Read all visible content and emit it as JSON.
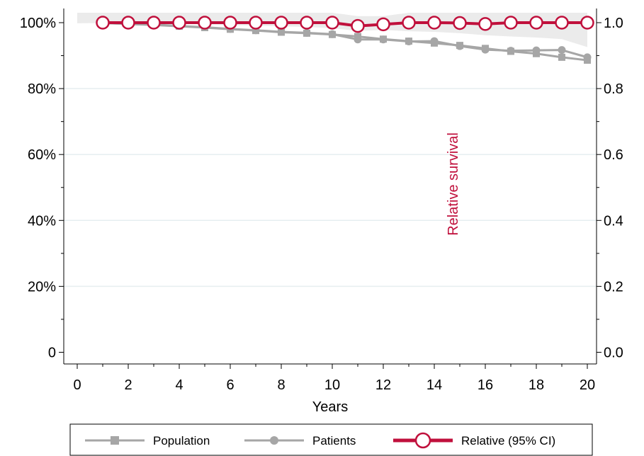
{
  "chart_data": {
    "type": "line",
    "title": "",
    "xlabel": "Years",
    "ylabel_left": "",
    "ylabel_right": "Relative survival",
    "xlim": [
      0,
      20
    ],
    "ylim_left": [
      0,
      100
    ],
    "ylim_right": [
      0.0,
      1.0
    ],
    "x_ticks": [
      "0",
      "2",
      "4",
      "6",
      "8",
      "10",
      "12",
      "14",
      "16",
      "18",
      "20"
    ],
    "y_left_ticks": [
      "0",
      "20%",
      "40%",
      "60%",
      "80%",
      "100%"
    ],
    "y_right_ticks": [
      "0.0",
      "0.2",
      "0.4",
      "0.6",
      "0.8",
      "1.0"
    ],
    "grid": true,
    "legend_position": "bottom",
    "x": [
      1,
      2,
      3,
      4,
      5,
      6,
      7,
      8,
      9,
      10,
      11,
      12,
      13,
      14,
      15,
      16,
      17,
      18,
      19,
      20
    ],
    "series": [
      {
        "name": "Population",
        "color": "#a6a6a6",
        "marker": "square",
        "axis": "left",
        "values": [
          99.9,
          99.6,
          99.3,
          98.9,
          98.5,
          98.0,
          97.6,
          97.1,
          96.8,
          96.4,
          95.8,
          95.0,
          94.4,
          93.8,
          93.1,
          92.2,
          91.3,
          90.6,
          89.5,
          88.6
        ]
      },
      {
        "name": "Patients",
        "color": "#a6a6a6",
        "marker": "circle",
        "axis": "left",
        "values": [
          99.9,
          99.6,
          99.4,
          99.0,
          98.6,
          98.1,
          97.7,
          97.2,
          96.9,
          96.5,
          94.9,
          94.9,
          94.3,
          94.4,
          92.9,
          91.8,
          91.5,
          91.6,
          91.7,
          89.5
        ]
      },
      {
        "name": "Relative (95% CI)",
        "color": "#c0103c",
        "marker": "hollow-circle",
        "axis": "right",
        "values": [
          1.0,
          1.0,
          1.0,
          1.0,
          1.0,
          1.0,
          1.0,
          1.0,
          1.0,
          1.0,
          0.99,
          0.995,
          1.0,
          1.0,
          0.999,
          0.996,
          1.0,
          1.0,
          1.0,
          1.0
        ],
        "ci_lower": [
          0.999,
          0.998,
          0.997,
          0.996,
          0.995,
          0.993,
          0.991,
          0.989,
          0.987,
          0.983,
          0.975,
          0.978,
          0.974,
          0.972,
          0.968,
          0.962,
          0.958,
          0.955,
          0.95,
          0.926
        ],
        "ci_upper": [
          1.03,
          1.03,
          1.03,
          1.03,
          1.03,
          1.03,
          1.03,
          1.03,
          1.03,
          1.03,
          1.02,
          1.02,
          1.03,
          1.03,
          1.03,
          1.03,
          1.03,
          1.03,
          1.03,
          1.03
        ],
        "ci_color": "#ebebeb"
      }
    ]
  }
}
